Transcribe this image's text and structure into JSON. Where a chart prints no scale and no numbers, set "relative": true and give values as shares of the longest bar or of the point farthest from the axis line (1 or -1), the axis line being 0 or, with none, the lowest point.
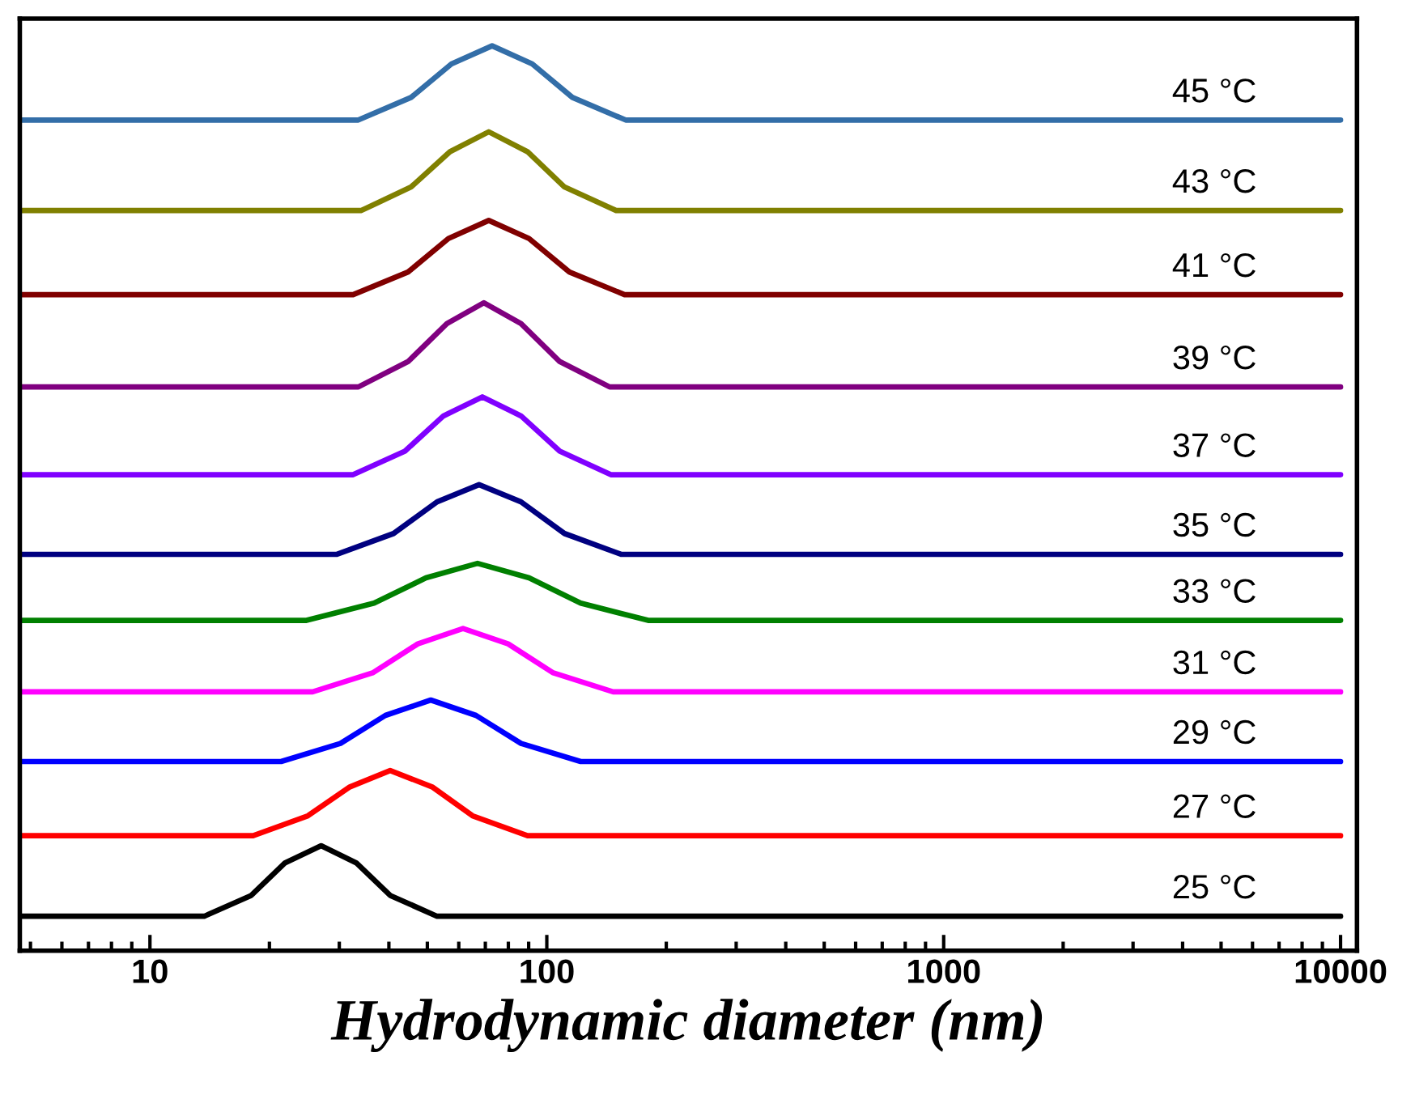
{
  "chart_data": {
    "type": "line",
    "relative": true,
    "xlabel": "Hydrodynamic diameter (nm)",
    "log": "x",
    "xlim": [
      4.7,
      11000
    ],
    "xticks": [
      10,
      100,
      1000,
      10000
    ],
    "grid": false,
    "legend": false,
    "marker": "none",
    "line_style": "solid",
    "series": [
      {
        "name": "25 °C",
        "color": "#000000",
        "x": [
          4.7,
          13.7,
          18.0,
          21.9,
          27.0,
          33.1,
          40.3,
          52.9,
          10000
        ],
        "values": [
          0.038,
          0.038,
          0.061,
          0.097,
          0.116,
          0.097,
          0.061,
          0.038,
          0.038
        ]
      },
      {
        "name": "27 °C",
        "color": "#ff0000",
        "x": [
          4.7,
          18.2,
          25.0,
          31.9,
          40.3,
          51.4,
          65.0,
          89.4,
          10000
        ],
        "values": [
          0.127,
          0.127,
          0.149,
          0.181,
          0.199,
          0.181,
          0.149,
          0.127,
          0.127
        ]
      },
      {
        "name": "29 °C",
        "color": "#0000ff",
        "x": [
          4.7,
          21.4,
          30.2,
          39.2,
          51.0,
          66.3,
          86.1,
          121.7,
          10000
        ],
        "values": [
          0.209,
          0.209,
          0.229,
          0.26,
          0.277,
          0.26,
          0.229,
          0.209,
          0.209
        ]
      },
      {
        "name": "31 °C",
        "color": "#ff00ff",
        "x": [
          4.7,
          25.7,
          36.4,
          47.3,
          61.5,
          79.9,
          103.8,
          146.9,
          10000
        ],
        "values": [
          0.286,
          0.286,
          0.307,
          0.339,
          0.356,
          0.339,
          0.307,
          0.286,
          0.286
        ]
      },
      {
        "name": "33 °C",
        "color": "#008000",
        "x": [
          4.7,
          24.8,
          36.7,
          49.6,
          66.9,
          90.2,
          121.7,
          180,
          10000
        ],
        "values": [
          0.365,
          0.365,
          0.384,
          0.412,
          0.428,
          0.412,
          0.384,
          0.365,
          0.365
        ]
      },
      {
        "name": "35 °C",
        "color": "#000080",
        "x": [
          4.7,
          29.6,
          41.1,
          52.9,
          67.5,
          86.1,
          110.8,
          153.8,
          10000
        ],
        "values": [
          0.438,
          0.438,
          0.461,
          0.496,
          0.515,
          0.496,
          0.461,
          0.438,
          0.438
        ]
      },
      {
        "name": "37 °C",
        "color": "#8000ff",
        "x": [
          4.7,
          32.5,
          43.9,
          54.9,
          68.8,
          86.1,
          107.8,
          145,
          10000
        ],
        "values": [
          0.526,
          0.526,
          0.552,
          0.591,
          0.612,
          0.591,
          0.552,
          0.526,
          0.526
        ]
      },
      {
        "name": "39 °C",
        "color": "#800080",
        "x": [
          4.7,
          33.5,
          44.7,
          56.0,
          69.4,
          86.1,
          107.8,
          144,
          10000
        ],
        "values": [
          0.623,
          0.623,
          0.651,
          0.693,
          0.716,
          0.693,
          0.651,
          0.623,
          0.623
        ]
      },
      {
        "name": "41 °C",
        "color": "#800000",
        "x": [
          4.7,
          32.5,
          44.7,
          56.5,
          71.4,
          90.2,
          114,
          157,
          10000
        ],
        "values": [
          0.725,
          0.725,
          0.75,
          0.787,
          0.807,
          0.787,
          0.75,
          0.725,
          0.725
        ]
      },
      {
        "name": "43 °C",
        "color": "#808000",
        "x": [
          4.7,
          34.1,
          45.5,
          57.0,
          71.4,
          89.4,
          110.8,
          149.5,
          10000
        ],
        "values": [
          0.818,
          0.818,
          0.844,
          0.883,
          0.905,
          0.883,
          0.844,
          0.818,
          0.818
        ]
      },
      {
        "name": "45 °C",
        "color": "#336ea8",
        "x": [
          4.7,
          33.5,
          45.5,
          57.5,
          72.8,
          91.9,
          116,
          158,
          10000
        ],
        "values": [
          0.918,
          0.918,
          0.943,
          0.98,
          1.0,
          0.98,
          0.943,
          0.918,
          0.918
        ]
      }
    ]
  }
}
